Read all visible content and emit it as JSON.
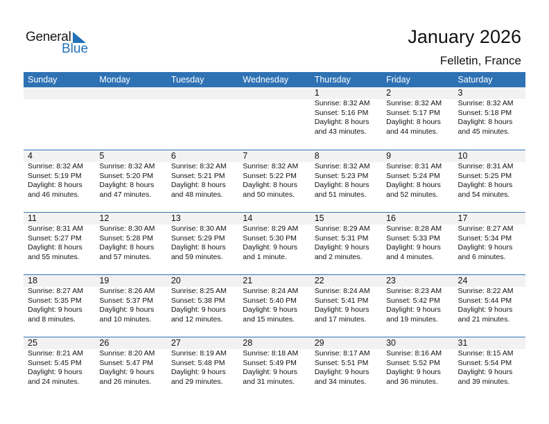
{
  "logo": {
    "line1": "General",
    "line2": "Blue"
  },
  "title": "January 2026",
  "location": "Felletin, France",
  "weekdays": [
    "Sunday",
    "Monday",
    "Tuesday",
    "Wednesday",
    "Thursday",
    "Friday",
    "Saturday"
  ],
  "colors": {
    "header": "#2e72b4",
    "date_band": "#f2f2f2",
    "logo_blue": "#2272b8"
  },
  "first_weekday_offset": 4,
  "days": [
    {
      "d": "1",
      "rise": "Sunrise: 8:32 AM",
      "set": "Sunset: 5:16 PM",
      "dl": "Daylight: 8 hours",
      "dm": "and 43 minutes."
    },
    {
      "d": "2",
      "rise": "Sunrise: 8:32 AM",
      "set": "Sunset: 5:17 PM",
      "dl": "Daylight: 8 hours",
      "dm": "and 44 minutes."
    },
    {
      "d": "3",
      "rise": "Sunrise: 8:32 AM",
      "set": "Sunset: 5:18 PM",
      "dl": "Daylight: 8 hours",
      "dm": "and 45 minutes."
    },
    {
      "d": "4",
      "rise": "Sunrise: 8:32 AM",
      "set": "Sunset: 5:19 PM",
      "dl": "Daylight: 8 hours",
      "dm": "and 46 minutes."
    },
    {
      "d": "5",
      "rise": "Sunrise: 8:32 AM",
      "set": "Sunset: 5:20 PM",
      "dl": "Daylight: 8 hours",
      "dm": "and 47 minutes."
    },
    {
      "d": "6",
      "rise": "Sunrise: 8:32 AM",
      "set": "Sunset: 5:21 PM",
      "dl": "Daylight: 8 hours",
      "dm": "and 48 minutes."
    },
    {
      "d": "7",
      "rise": "Sunrise: 8:32 AM",
      "set": "Sunset: 5:22 PM",
      "dl": "Daylight: 8 hours",
      "dm": "and 50 minutes."
    },
    {
      "d": "8",
      "rise": "Sunrise: 8:32 AM",
      "set": "Sunset: 5:23 PM",
      "dl": "Daylight: 8 hours",
      "dm": "and 51 minutes."
    },
    {
      "d": "9",
      "rise": "Sunrise: 8:31 AM",
      "set": "Sunset: 5:24 PM",
      "dl": "Daylight: 8 hours",
      "dm": "and 52 minutes."
    },
    {
      "d": "10",
      "rise": "Sunrise: 8:31 AM",
      "set": "Sunset: 5:25 PM",
      "dl": "Daylight: 8 hours",
      "dm": "and 54 minutes."
    },
    {
      "d": "11",
      "rise": "Sunrise: 8:31 AM",
      "set": "Sunset: 5:27 PM",
      "dl": "Daylight: 8 hours",
      "dm": "and 55 minutes."
    },
    {
      "d": "12",
      "rise": "Sunrise: 8:30 AM",
      "set": "Sunset: 5:28 PM",
      "dl": "Daylight: 8 hours",
      "dm": "and 57 minutes."
    },
    {
      "d": "13",
      "rise": "Sunrise: 8:30 AM",
      "set": "Sunset: 5:29 PM",
      "dl": "Daylight: 8 hours",
      "dm": "and 59 minutes."
    },
    {
      "d": "14",
      "rise": "Sunrise: 8:29 AM",
      "set": "Sunset: 5:30 PM",
      "dl": "Daylight: 9 hours",
      "dm": "and 1 minute."
    },
    {
      "d": "15",
      "rise": "Sunrise: 8:29 AM",
      "set": "Sunset: 5:31 PM",
      "dl": "Daylight: 9 hours",
      "dm": "and 2 minutes."
    },
    {
      "d": "16",
      "rise": "Sunrise: 8:28 AM",
      "set": "Sunset: 5:33 PM",
      "dl": "Daylight: 9 hours",
      "dm": "and 4 minutes."
    },
    {
      "d": "17",
      "rise": "Sunrise: 8:27 AM",
      "set": "Sunset: 5:34 PM",
      "dl": "Daylight: 9 hours",
      "dm": "and 6 minutes."
    },
    {
      "d": "18",
      "rise": "Sunrise: 8:27 AM",
      "set": "Sunset: 5:35 PM",
      "dl": "Daylight: 9 hours",
      "dm": "and 8 minutes."
    },
    {
      "d": "19",
      "rise": "Sunrise: 8:26 AM",
      "set": "Sunset: 5:37 PM",
      "dl": "Daylight: 9 hours",
      "dm": "and 10 minutes."
    },
    {
      "d": "20",
      "rise": "Sunrise: 8:25 AM",
      "set": "Sunset: 5:38 PM",
      "dl": "Daylight: 9 hours",
      "dm": "and 12 minutes."
    },
    {
      "d": "21",
      "rise": "Sunrise: 8:24 AM",
      "set": "Sunset: 5:40 PM",
      "dl": "Daylight: 9 hours",
      "dm": "and 15 minutes."
    },
    {
      "d": "22",
      "rise": "Sunrise: 8:24 AM",
      "set": "Sunset: 5:41 PM",
      "dl": "Daylight: 9 hours",
      "dm": "and 17 minutes."
    },
    {
      "d": "23",
      "rise": "Sunrise: 8:23 AM",
      "set": "Sunset: 5:42 PM",
      "dl": "Daylight: 9 hours",
      "dm": "and 19 minutes."
    },
    {
      "d": "24",
      "rise": "Sunrise: 8:22 AM",
      "set": "Sunset: 5:44 PM",
      "dl": "Daylight: 9 hours",
      "dm": "and 21 minutes."
    },
    {
      "d": "25",
      "rise": "Sunrise: 8:21 AM",
      "set": "Sunset: 5:45 PM",
      "dl": "Daylight: 9 hours",
      "dm": "and 24 minutes."
    },
    {
      "d": "26",
      "rise": "Sunrise: 8:20 AM",
      "set": "Sunset: 5:47 PM",
      "dl": "Daylight: 9 hours",
      "dm": "and 26 minutes."
    },
    {
      "d": "27",
      "rise": "Sunrise: 8:19 AM",
      "set": "Sunset: 5:48 PM",
      "dl": "Daylight: 9 hours",
      "dm": "and 29 minutes."
    },
    {
      "d": "28",
      "rise": "Sunrise: 8:18 AM",
      "set": "Sunset: 5:49 PM",
      "dl": "Daylight: 9 hours",
      "dm": "and 31 minutes."
    },
    {
      "d": "29",
      "rise": "Sunrise: 8:17 AM",
      "set": "Sunset: 5:51 PM",
      "dl": "Daylight: 9 hours",
      "dm": "and 34 minutes."
    },
    {
      "d": "30",
      "rise": "Sunrise: 8:16 AM",
      "set": "Sunset: 5:52 PM",
      "dl": "Daylight: 9 hours",
      "dm": "and 36 minutes."
    },
    {
      "d": "31",
      "rise": "Sunrise: 8:15 AM",
      "set": "Sunset: 5:54 PM",
      "dl": "Daylight: 9 hours",
      "dm": "and 39 minutes."
    }
  ]
}
